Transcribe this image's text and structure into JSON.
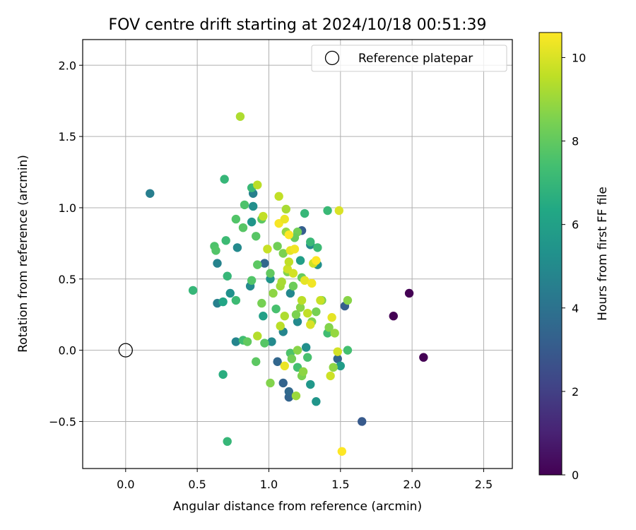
{
  "chart_data": {
    "type": "scatter",
    "title": "FOV centre drift starting at 2024/10/18 00:51:39",
    "xlabel": "Angular distance from reference (arcmin)",
    "ylabel": "Rotation from reference (arcmin)",
    "xlim": [
      -0.3,
      2.7
    ],
    "ylim": [
      -0.83,
      2.18
    ],
    "xticks": [
      "0.0",
      "0.5",
      "1.0",
      "1.5",
      "2.0",
      "2.5"
    ],
    "yticks": [
      "−0.5",
      "0.0",
      "0.5",
      "1.0",
      "1.5",
      "2.0"
    ],
    "grid": true,
    "legend": {
      "placement": "top-right",
      "entries": [
        "Reference platepar"
      ]
    },
    "reference": {
      "x": 0.0,
      "y": 0.0
    },
    "colorbar": {
      "label": "Hours from first FF file",
      "range": [
        0,
        10.6
      ],
      "ticks": [
        "0",
        "2",
        "4",
        "6",
        "8",
        "10"
      ],
      "colormap": "viridis"
    },
    "points": [
      {
        "x": 1.87,
        "y": 0.24,
        "h": 0.0
      },
      {
        "x": 1.98,
        "y": 0.4,
        "h": 0.0
      },
      {
        "x": 2.08,
        "y": -0.05,
        "h": 0.0
      },
      {
        "x": 1.65,
        "y": -0.5,
        "h": 3.0
      },
      {
        "x": 1.53,
        "y": 0.31,
        "h": 3.2
      },
      {
        "x": 1.48,
        "y": -0.06,
        "h": 3.5
      },
      {
        "x": 1.23,
        "y": 0.84,
        "h": 3.2
      },
      {
        "x": 1.1,
        "y": -0.23,
        "h": 3.4
      },
      {
        "x": 1.14,
        "y": -0.33,
        "h": 3.4
      },
      {
        "x": 1.14,
        "y": -0.29,
        "h": 3.6
      },
      {
        "x": 1.06,
        "y": -0.08,
        "h": 3.5
      },
      {
        "x": 0.97,
        "y": 0.61,
        "h": 3.5
      },
      {
        "x": 0.89,
        "y": 1.1,
        "h": 4.6
      },
      {
        "x": 0.17,
        "y": 1.1,
        "h": 4.5
      },
      {
        "x": 0.64,
        "y": 0.33,
        "h": 4.6
      },
      {
        "x": 0.64,
        "y": 0.61,
        "h": 4.7
      },
      {
        "x": 0.77,
        "y": 0.06,
        "h": 4.8
      },
      {
        "x": 0.87,
        "y": 0.45,
        "h": 5.0
      },
      {
        "x": 0.89,
        "y": 1.01,
        "h": 5.2
      },
      {
        "x": 0.88,
        "y": 0.9,
        "h": 5.5
      },
      {
        "x": 0.78,
        "y": 0.72,
        "h": 5.0
      },
      {
        "x": 0.73,
        "y": 0.4,
        "h": 5.3
      },
      {
        "x": 1.02,
        "y": 0.06,
        "h": 5.0
      },
      {
        "x": 1.01,
        "y": 0.5,
        "h": 5.4
      },
      {
        "x": 1.1,
        "y": 0.13,
        "h": 4.8
      },
      {
        "x": 1.15,
        "y": 0.4,
        "h": 4.9
      },
      {
        "x": 1.2,
        "y": 0.2,
        "h": 5.0
      },
      {
        "x": 1.26,
        "y": 0.02,
        "h": 5.2
      },
      {
        "x": 1.29,
        "y": -0.24,
        "h": 5.6
      },
      {
        "x": 1.33,
        "y": -0.36,
        "h": 5.5
      },
      {
        "x": 1.34,
        "y": 0.6,
        "h": 5.2
      },
      {
        "x": 1.29,
        "y": 0.74,
        "h": 5.0
      },
      {
        "x": 1.5,
        "y": -0.11,
        "h": 5.8
      },
      {
        "x": 1.22,
        "y": 0.63,
        "h": 5.9
      },
      {
        "x": 0.96,
        "y": 0.24,
        "h": 6.0
      },
      {
        "x": 0.68,
        "y": 0.34,
        "h": 6.2
      },
      {
        "x": 0.68,
        "y": -0.17,
        "h": 6.6
      },
      {
        "x": 0.71,
        "y": -0.64,
        "h": 7.0
      },
      {
        "x": 0.47,
        "y": 0.42,
        "h": 7.0
      },
      {
        "x": 0.69,
        "y": 1.2,
        "h": 7.0
      },
      {
        "x": 0.88,
        "y": 1.14,
        "h": 7.1
      },
      {
        "x": 0.7,
        "y": 0.77,
        "h": 7.2
      },
      {
        "x": 0.71,
        "y": 0.52,
        "h": 7.0
      },
      {
        "x": 0.77,
        "y": 0.35,
        "h": 7.2
      },
      {
        "x": 0.82,
        "y": 0.07,
        "h": 7.3
      },
      {
        "x": 1.41,
        "y": 0.98,
        "h": 7.1
      },
      {
        "x": 1.25,
        "y": 0.96,
        "h": 7.0
      },
      {
        "x": 1.34,
        "y": 0.72,
        "h": 7.2
      },
      {
        "x": 1.29,
        "y": 0.76,
        "h": 7.1
      },
      {
        "x": 1.55,
        "y": 0.0,
        "h": 7.4
      },
      {
        "x": 1.41,
        "y": 0.12,
        "h": 7.3
      },
      {
        "x": 1.27,
        "y": -0.05,
        "h": 7.5
      },
      {
        "x": 1.2,
        "y": -0.12,
        "h": 7.4
      },
      {
        "x": 1.15,
        "y": -0.02,
        "h": 7.6
      },
      {
        "x": 1.05,
        "y": 0.29,
        "h": 7.5
      },
      {
        "x": 0.62,
        "y": 0.73,
        "h": 7.6
      },
      {
        "x": 0.63,
        "y": 0.7,
        "h": 7.7
      },
      {
        "x": 0.77,
        "y": 0.92,
        "h": 7.7
      },
      {
        "x": 0.83,
        "y": 1.02,
        "h": 7.6
      },
      {
        "x": 0.82,
        "y": 0.86,
        "h": 7.8
      },
      {
        "x": 0.95,
        "y": 0.92,
        "h": 7.9
      },
      {
        "x": 0.91,
        "y": 0.8,
        "h": 7.8
      },
      {
        "x": 0.88,
        "y": 0.49,
        "h": 7.7
      },
      {
        "x": 0.92,
        "y": 0.6,
        "h": 7.9
      },
      {
        "x": 0.97,
        "y": 0.05,
        "h": 7.8
      },
      {
        "x": 0.91,
        "y": -0.08,
        "h": 7.9
      },
      {
        "x": 0.85,
        "y": 0.06,
        "h": 8.0
      },
      {
        "x": 1.01,
        "y": -0.23,
        "h": 8.6
      },
      {
        "x": 0.95,
        "y": 0.33,
        "h": 8.4
      },
      {
        "x": 1.06,
        "y": 0.73,
        "h": 8.3
      },
      {
        "x": 1.1,
        "y": 0.68,
        "h": 8.5
      },
      {
        "x": 1.13,
        "y": 0.55,
        "h": 8.6
      },
      {
        "x": 1.17,
        "y": 0.45,
        "h": 8.2
      },
      {
        "x": 1.19,
        "y": 0.25,
        "h": 8.5
      },
      {
        "x": 1.22,
        "y": 0.3,
        "h": 8.7
      },
      {
        "x": 1.23,
        "y": 0.51,
        "h": 8.1
      },
      {
        "x": 1.16,
        "y": -0.06,
        "h": 8.3
      },
      {
        "x": 1.2,
        "y": 0.0,
        "h": 8.7
      },
      {
        "x": 1.23,
        "y": -0.18,
        "h": 8.5
      },
      {
        "x": 1.24,
        "y": -0.15,
        "h": 8.8
      },
      {
        "x": 1.3,
        "y": 0.2,
        "h": 8.6
      },
      {
        "x": 1.33,
        "y": 0.27,
        "h": 8.4
      },
      {
        "x": 1.37,
        "y": 0.35,
        "h": 8.5
      },
      {
        "x": 1.42,
        "y": 0.16,
        "h": 8.6
      },
      {
        "x": 1.45,
        "y": -0.12,
        "h": 8.8
      },
      {
        "x": 1.46,
        "y": 0.12,
        "h": 8.9
      },
      {
        "x": 1.55,
        "y": 0.35,
        "h": 8.7
      },
      {
        "x": 1.19,
        "y": -0.32,
        "h": 9.0
      },
      {
        "x": 1.01,
        "y": 0.54,
        "h": 8.0
      },
      {
        "x": 1.03,
        "y": 0.4,
        "h": 8.8
      },
      {
        "x": 1.12,
        "y": 0.83,
        "h": 8.9
      },
      {
        "x": 1.2,
        "y": 0.83,
        "h": 8.3
      },
      {
        "x": 1.18,
        "y": 0.79,
        "h": 8.1
      },
      {
        "x": 1.08,
        "y": 0.45,
        "h": 9.1
      },
      {
        "x": 1.09,
        "y": 0.48,
        "h": 9.2
      },
      {
        "x": 1.11,
        "y": 0.24,
        "h": 9.3
      },
      {
        "x": 0.8,
        "y": 1.64,
        "h": 9.3
      },
      {
        "x": 0.92,
        "y": 1.16,
        "h": 9.5
      },
      {
        "x": 0.96,
        "y": 0.94,
        "h": 9.6
      },
      {
        "x": 0.99,
        "y": 0.71,
        "h": 9.7
      },
      {
        "x": 0.92,
        "y": 0.1,
        "h": 9.4
      },
      {
        "x": 1.08,
        "y": 0.17,
        "h": 9.5
      },
      {
        "x": 1.13,
        "y": 0.57,
        "h": 9.8
      },
      {
        "x": 1.14,
        "y": 0.62,
        "h": 9.6
      },
      {
        "x": 1.17,
        "y": 0.54,
        "h": 9.9
      },
      {
        "x": 1.23,
        "y": 0.35,
        "h": 9.5
      },
      {
        "x": 1.27,
        "y": 0.26,
        "h": 9.6
      },
      {
        "x": 1.29,
        "y": 0.18,
        "h": 10.0
      },
      {
        "x": 1.31,
        "y": 0.61,
        "h": 9.8
      },
      {
        "x": 1.36,
        "y": 0.35,
        "h": 9.7
      },
      {
        "x": 1.43,
        "y": -0.18,
        "h": 9.8
      },
      {
        "x": 1.48,
        "y": -0.01,
        "h": 9.9
      },
      {
        "x": 1.44,
        "y": 0.23,
        "h": 10.2
      },
      {
        "x": 1.15,
        "y": 0.7,
        "h": 10.2
      },
      {
        "x": 1.18,
        "y": 0.71,
        "h": 10.4
      },
      {
        "x": 1.07,
        "y": 0.89,
        "h": 10.5
      },
      {
        "x": 1.11,
        "y": 0.92,
        "h": 10.3
      },
      {
        "x": 1.07,
        "y": 1.08,
        "h": 9.6
      },
      {
        "x": 1.12,
        "y": 0.99,
        "h": 9.2
      },
      {
        "x": 1.14,
        "y": 0.81,
        "h": 10.6
      },
      {
        "x": 1.25,
        "y": 0.49,
        "h": 10.2
      },
      {
        "x": 1.3,
        "y": 0.47,
        "h": 10.4
      },
      {
        "x": 1.11,
        "y": -0.11,
        "h": 10.3
      },
      {
        "x": 1.33,
        "y": 0.63,
        "h": 10.6
      },
      {
        "x": 1.49,
        "y": 0.98,
        "h": 10.0
      },
      {
        "x": 1.51,
        "y": -0.71,
        "h": 10.6
      }
    ]
  }
}
